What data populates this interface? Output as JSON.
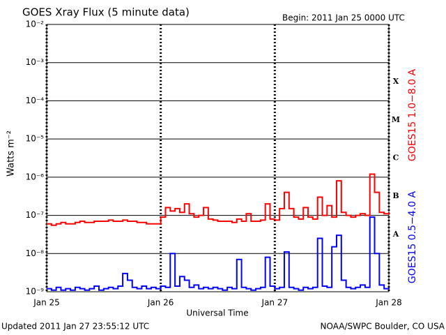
{
  "chart_data": {
    "type": "line",
    "title": "GOES Xray Flux (5 minute data)",
    "subtitle": "Begin:  2011 Jan 25 0000 UTC",
    "x_label": "Universal Time",
    "y_label": "Watts m⁻²",
    "footer_left": "Updated 2011 Jan 27 23:55:12 UTC",
    "footer_right": "NOAA/SWPC Boulder, CO USA",
    "log_scale": true,
    "grid": true,
    "xlim": [
      0,
      72
    ],
    "xticks": [
      {
        "value": 0,
        "label": "Jan 25"
      },
      {
        "value": 24,
        "label": "Jan 26"
      },
      {
        "value": 48,
        "label": "Jan 27"
      },
      {
        "value": 72,
        "label": "Jan 28"
      }
    ],
    "ylim": [
      1e-09,
      0.01
    ],
    "yticks": [
      {
        "value": 1e-09,
        "label": "10⁻⁹"
      },
      {
        "value": 1e-08,
        "label": "10⁻⁸"
      },
      {
        "value": 1e-07,
        "label": "10⁻⁷"
      },
      {
        "value": 1e-06,
        "label": "10⁻⁶"
      },
      {
        "value": 1e-05,
        "label": "10⁻⁵"
      },
      {
        "value": 0.0001,
        "label": "10⁻⁴"
      },
      {
        "value": 0.001,
        "label": "10⁻³"
      },
      {
        "value": 0.01,
        "label": "10⁻²"
      }
    ],
    "flare_classes": [
      {
        "label": "X",
        "value": 0.0001
      },
      {
        "label": "M",
        "value": 1e-05
      },
      {
        "label": "C",
        "value": 1e-06
      },
      {
        "label": "B",
        "value": 1e-07
      },
      {
        "label": "A",
        "value": 1e-08
      }
    ],
    "x": [
      0,
      1,
      2,
      3,
      4,
      5,
      6,
      7,
      8,
      9,
      10,
      11,
      12,
      13,
      14,
      15,
      16,
      17,
      18,
      19,
      20,
      21,
      22,
      23,
      24,
      25,
      26,
      27,
      28,
      29,
      30,
      31,
      32,
      33,
      34,
      35,
      36,
      37,
      38,
      39,
      40,
      41,
      42,
      43,
      44,
      45,
      46,
      47,
      48,
      49,
      50,
      51,
      52,
      53,
      54,
      55,
      56,
      57,
      58,
      59,
      60,
      61,
      62,
      63,
      64,
      65,
      66,
      67,
      68,
      69,
      70,
      71,
      72
    ],
    "series": [
      {
        "name": "GOES15 1.0−8.0 A",
        "color": "#ff0000",
        "values": [
          6e-08,
          5.5e-08,
          6e-08,
          6.5e-08,
          6e-08,
          6e-08,
          6.5e-08,
          7e-08,
          6.5e-08,
          6.5e-08,
          7e-08,
          7e-08,
          7e-08,
          7.5e-08,
          7e-08,
          7e-08,
          7.5e-08,
          7e-08,
          7e-08,
          6.5e-08,
          6.5e-08,
          6e-08,
          6e-08,
          6e-08,
          9e-08,
          1.6e-07,
          1.3e-07,
          1.5e-07,
          1.2e-07,
          2e-07,
          1.1e-07,
          9e-08,
          1e-07,
          1.6e-07,
          8e-08,
          7.5e-08,
          7e-08,
          7e-08,
          7e-08,
          6.5e-08,
          8e-08,
          7e-08,
          1.1e-07,
          7e-08,
          7e-08,
          7.5e-08,
          2e-07,
          8e-08,
          7.5e-08,
          1.5e-07,
          4e-07,
          1.5e-07,
          9e-08,
          8e-08,
          1.6e-07,
          9e-08,
          8e-08,
          3e-07,
          1e-07,
          1.8e-07,
          9e-08,
          8e-07,
          1.2e-07,
          1e-07,
          9e-08,
          1e-07,
          1.1e-07,
          1e-07,
          1.2e-06,
          4e-07,
          1.2e-07,
          1.1e-07,
          1.2e-07
        ]
      },
      {
        "name": "GOES15 0.5−4.0 A",
        "color": "#0000ff",
        "values": [
          1.2e-09,
          1.1e-09,
          1.3e-09,
          1.1e-09,
          1.2e-09,
          1.1e-09,
          1.3e-09,
          1.2e-09,
          1.1e-09,
          1.2e-09,
          1.4e-09,
          1.1e-09,
          1.2e-09,
          1.3e-09,
          1.2e-09,
          1.4e-09,
          3e-09,
          2e-09,
          1.3e-09,
          1.2e-09,
          1.4e-09,
          1.2e-09,
          1.3e-09,
          1.2e-09,
          1.4e-09,
          1.3e-09,
          1e-08,
          1.4e-09,
          2.5e-09,
          2e-09,
          1.3e-09,
          1.5e-09,
          1.2e-09,
          1.3e-09,
          1.2e-09,
          1.3e-09,
          1.2e-09,
          1.1e-09,
          1.3e-09,
          1.2e-09,
          7e-09,
          1.3e-09,
          1.2e-09,
          1.1e-09,
          1.2e-09,
          1.3e-09,
          8e-09,
          1.4e-09,
          1.2e-09,
          1.3e-09,
          1.1e-08,
          1.3e-09,
          1.2e-09,
          1.1e-09,
          1.3e-09,
          1.2e-09,
          1.3e-09,
          2.5e-08,
          1.4e-09,
          1.3e-09,
          1.5e-08,
          3e-08,
          2e-09,
          1.3e-09,
          1.2e-09,
          1.3e-09,
          1.5e-09,
          1.3e-09,
          9e-08,
          1e-08,
          1.5e-09,
          1.2e-09,
          1.3e-09
        ]
      }
    ]
  }
}
